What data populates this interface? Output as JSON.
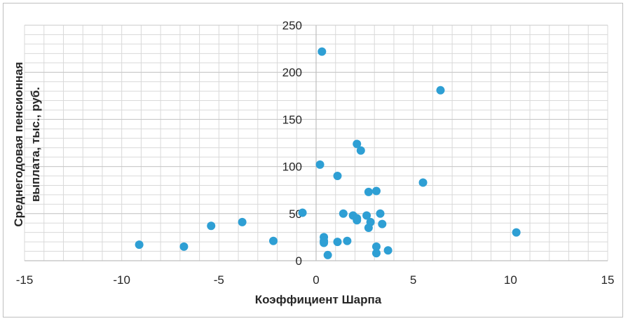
{
  "chart_data": {
    "type": "scatter",
    "xlabel": "Коэффициент Шарпа",
    "ylabel_lines": [
      "Среднегодовая пенсионная",
      "выплата, тыс., руб."
    ],
    "xlim": [
      -15,
      15
    ],
    "ylim": [
      0,
      250
    ],
    "xticks": [
      -15,
      -10,
      -5,
      0,
      5,
      10,
      15
    ],
    "yticks": [
      0,
      50,
      100,
      150,
      200,
      250
    ],
    "xtick_labels": [
      "-15",
      "-10",
      "-5",
      "0",
      "5",
      "10",
      "15"
    ],
    "ytick_labels": [
      "0",
      "50",
      "100",
      "150",
      "200",
      "250"
    ],
    "grid": true,
    "point_color": "#2e9fd4",
    "grid_color": "#d9d9d9",
    "axis_color": "#bfbfbf",
    "points": [
      {
        "x": 0.3,
        "y": 222
      },
      {
        "x": 6.4,
        "y": 181
      },
      {
        "x": 2.1,
        "y": 124
      },
      {
        "x": 2.3,
        "y": 117
      },
      {
        "x": 0.2,
        "y": 102
      },
      {
        "x": 1.1,
        "y": 90
      },
      {
        "x": 5.5,
        "y": 83
      },
      {
        "x": 2.7,
        "y": 73
      },
      {
        "x": 3.1,
        "y": 74
      },
      {
        "x": -0.7,
        "y": 51
      },
      {
        "x": 1.4,
        "y": 50
      },
      {
        "x": 1.9,
        "y": 48
      },
      {
        "x": 2.1,
        "y": 45
      },
      {
        "x": 2.1,
        "y": 43
      },
      {
        "x": 2.6,
        "y": 48
      },
      {
        "x": 3.3,
        "y": 50
      },
      {
        "x": 2.8,
        "y": 41
      },
      {
        "x": 3.4,
        "y": 39
      },
      {
        "x": 2.7,
        "y": 35
      },
      {
        "x": -3.8,
        "y": 41
      },
      {
        "x": -5.4,
        "y": 37
      },
      {
        "x": -2.2,
        "y": 21
      },
      {
        "x": 0.4,
        "y": 25
      },
      {
        "x": 0.4,
        "y": 21
      },
      {
        "x": 0.4,
        "y": 19
      },
      {
        "x": 1.1,
        "y": 20
      },
      {
        "x": 1.6,
        "y": 21
      },
      {
        "x": 3.1,
        "y": 15
      },
      {
        "x": 3.7,
        "y": 11
      },
      {
        "x": 3.1,
        "y": 8
      },
      {
        "x": 0.6,
        "y": 6
      },
      {
        "x": -9.1,
        "y": 17
      },
      {
        "x": -6.8,
        "y": 15
      },
      {
        "x": 10.3,
        "y": 30
      }
    ]
  }
}
